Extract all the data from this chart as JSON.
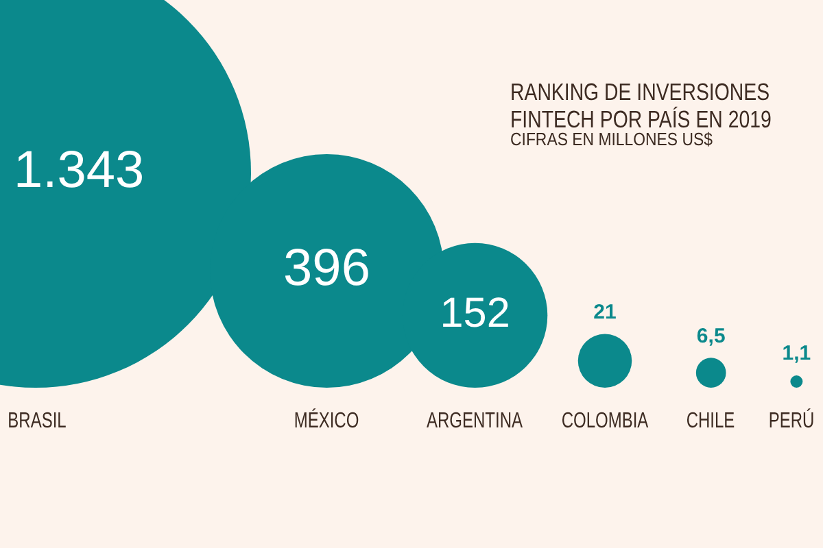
{
  "chart_data": {
    "type": "other",
    "title": "RANKING DE INVERSIONES FINTECH POR PAÍS EN 2019",
    "subtitle": "CIFRAS EN MILLONES US$",
    "categories": [
      "BRASIL",
      "MÉXICO",
      "ARGENTINA",
      "COLOMBIA",
      "CHILE",
      "PERÚ"
    ],
    "values": [
      1343,
      396,
      152,
      21,
      6.5,
      1.1
    ],
    "value_labels": [
      "1.343",
      "396",
      "152",
      "21",
      "6,5",
      "1,1"
    ],
    "color": "#0b898c"
  }
}
